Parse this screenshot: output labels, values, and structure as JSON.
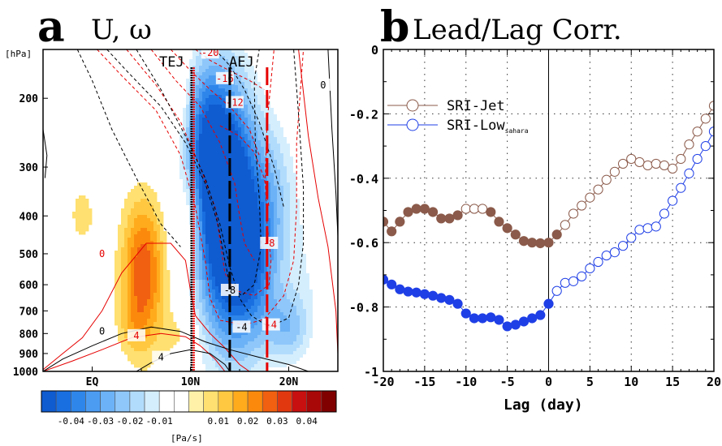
{
  "panel_a": {
    "letter": "a",
    "title": "U, ω",
    "y_unit": "[hPa]",
    "colorbar_unit": "[Pa/s]",
    "jet_labels": [
      "TEJ",
      "AEJ"
    ]
  },
  "panel_b": {
    "letter": "b",
    "title": "Lead/Lag Corr.",
    "xlabel": "Lag (day)"
  },
  "colors": {
    "jet": "#8b5a4a",
    "low": "#1f3fe6",
    "red_contour": "#e60000",
    "black_contour": "#000000"
  },
  "chart_data": [
    {
      "type": "heatmap",
      "title": "U, ω",
      "ylabel": "[hPa]",
      "y_scale": "log-pressure, inverted",
      "ylim": [
        1000,
        150
      ],
      "y_ticks": [
        "200",
        "300",
        "400",
        "500",
        "600",
        "700",
        "800",
        "900",
        "1000"
      ],
      "y_tick_values": [
        200,
        300,
        400,
        500,
        600,
        700,
        800,
        900,
        1000
      ],
      "xlim": [
        -5,
        25
      ],
      "x_ticks": [
        "EQ",
        "10N",
        "20N"
      ],
      "x_tick_values": [
        0,
        10,
        20
      ],
      "colorbar": {
        "label": "[Pa/s]",
        "tick_labels": [
          "-0.04",
          "-0.03",
          "-0.02",
          "-0.01",
          "0.01",
          "0.02",
          "0.03",
          "0.04"
        ],
        "tick_values": [
          -0.04,
          -0.03,
          -0.02,
          -0.01,
          0.01,
          0.02,
          0.03,
          0.04
        ],
        "range": [
          -0.05,
          0.05
        ],
        "colors": [
          "#0f5bd0",
          "#1a6fe0",
          "#2f86ea",
          "#4c9cf2",
          "#6cb2f6",
          "#8fc7fa",
          "#b2dcfc",
          "#d5eefd",
          "#ffffff",
          "#ffffff",
          "#fff2a8",
          "#ffe070",
          "#ffc840",
          "#ffab1c",
          "#fb8a0c",
          "#f06010",
          "#e23810",
          "#c81010",
          "#a80808",
          "#800000"
        ]
      },
      "fields": [
        {
          "sign": "negative",
          "level": 0.045,
          "lat": [
            [
              11.5,
              16
            ],
            [
              8.5,
              13
            ],
            [
              11.5,
              16.5
            ],
            [
              18.5,
              21.5
            ]
          ],
          "p": [
            [
              900,
              800
            ],
            [
              350,
              210
            ],
            [
              680,
              320
            ],
            [
              800,
              740
            ]
          ],
          "note": "ascent core"
        },
        {
          "sign": "positive",
          "level": 0.025,
          "lat": [
            [
              3,
              7
            ],
            [
              9,
              11
            ],
            [
              -2,
              0
            ]
          ],
          "p": [
            [
              680,
              430
            ],
            [
              460,
              380
            ],
            [
              420,
              390
            ]
          ],
          "note": "subsidence"
        }
      ],
      "contour_levels": {
        "u_red": [
          -20,
          -16,
          -12,
          -8,
          -4,
          0
        ],
        "u_black": [
          -8,
          -4,
          0,
          4
        ]
      },
      "contour_labels_shown": [
        "-20",
        "-16",
        "-12",
        "-8",
        "-4",
        "0",
        "-8",
        "-4",
        "0",
        "4",
        "4",
        "0"
      ],
      "vertical_lines": [
        {
          "label": "TEJ",
          "lat": 10.2,
          "colors": [
            "#000000",
            "#e60000"
          ],
          "style": "dotted"
        },
        {
          "label": "AEJ",
          "lat": 14.0,
          "colors": [
            "#000000"
          ],
          "style": "dashed"
        },
        {
          "label": "",
          "lat": 17.8,
          "colors": [
            "#e60000"
          ],
          "style": "dashed"
        }
      ]
    },
    {
      "type": "line",
      "title": "Lead/Lag Corr.",
      "xlabel": "Lag (day)",
      "ylabel": "",
      "xlim": [
        -20,
        20
      ],
      "ylim": [
        -1,
        0
      ],
      "x_ticks": [
        "-20",
        "-15",
        "-10",
        "-5",
        "0",
        "5",
        "10",
        "15",
        "20"
      ],
      "x_tick_values": [
        -20,
        -15,
        -10,
        -5,
        0,
        5,
        10,
        15,
        20
      ],
      "y_ticks": [
        "0",
        "-0.2",
        "-0.4",
        "-0.6",
        "-0.8",
        "-1"
      ],
      "y_tick_values": [
        0,
        -0.2,
        -0.4,
        -0.6,
        -0.8,
        -1
      ],
      "grid": "dotted",
      "legend_position": "top-left",
      "x": [
        -20,
        -19,
        -18,
        -17,
        -16,
        -15,
        -14,
        -13,
        -12,
        -11,
        -10,
        -9,
        -8,
        -7,
        -6,
        -5,
        -4,
        -3,
        -2,
        -1,
        0,
        1,
        2,
        3,
        4,
        5,
        6,
        7,
        8,
        9,
        10,
        11,
        12,
        13,
        14,
        15,
        16,
        17,
        18,
        19,
        20
      ],
      "series": [
        {
          "name": "SRI-Jet",
          "color": "#8b5a4a",
          "values": [
            -0.535,
            -0.565,
            -0.535,
            -0.505,
            -0.495,
            -0.495,
            -0.505,
            -0.525,
            -0.525,
            -0.515,
            -0.495,
            -0.495,
            -0.495,
            -0.505,
            -0.535,
            -0.555,
            -0.575,
            -0.595,
            -0.6,
            -0.602,
            -0.6,
            -0.575,
            -0.545,
            -0.51,
            -0.485,
            -0.46,
            -0.435,
            -0.405,
            -0.38,
            -0.355,
            -0.34,
            -0.35,
            -0.36,
            -0.355,
            -0.36,
            -0.37,
            -0.34,
            -0.295,
            -0.255,
            -0.215,
            -0.175
          ],
          "filled_index_ranges": [
            [
              0,
              9
            ],
            [
              13,
              21
            ]
          ],
          "marker": "circle"
        },
        {
          "name": "SRI-Low",
          "name_subscript": "sahara",
          "color": "#1f3fe6",
          "values": [
            -0.715,
            -0.73,
            -0.745,
            -0.752,
            -0.755,
            -0.76,
            -0.765,
            -0.772,
            -0.778,
            -0.79,
            -0.82,
            -0.835,
            -0.835,
            -0.832,
            -0.84,
            -0.86,
            -0.855,
            -0.845,
            -0.835,
            -0.825,
            -0.79,
            -0.75,
            -0.725,
            -0.72,
            -0.705,
            -0.68,
            -0.66,
            -0.64,
            -0.63,
            -0.61,
            -0.585,
            -0.56,
            -0.555,
            -0.55,
            -0.51,
            -0.47,
            -0.43,
            -0.385,
            -0.34,
            -0.3,
            -0.255
          ],
          "filled_index_ranges": [
            [
              0,
              20
            ]
          ],
          "marker": "circle"
        }
      ]
    }
  ]
}
